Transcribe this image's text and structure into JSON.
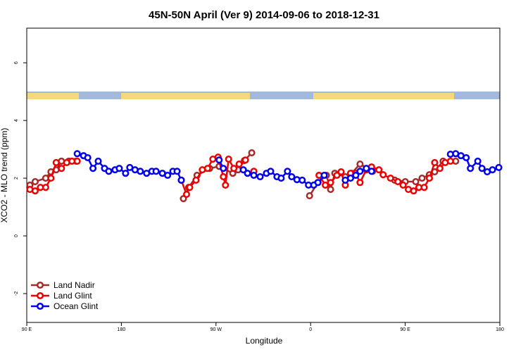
{
  "chart_data": {
    "type": "line",
    "title": "45N-50N April (Ver 9)   2014-09-06 to 2018-12-31",
    "xlabel": "Longitude",
    "ylabel": "XCO2 - MLO trend (ppm)",
    "xlim": [
      90,
      540
    ],
    "ylim": [
      -3,
      7.2
    ],
    "xticks": [
      {
        "value": 90,
        "label": "90 E"
      },
      180,
      {
        "value": 270,
        "label": "90 W"
      },
      {
        "value": 360,
        "label": "0"
      },
      {
        "value": 450,
        "label": "90 E"
      },
      {
        "value": 540,
        "label": "180"
      }
    ],
    "yticks": [
      -2,
      0,
      2,
      4,
      6
    ],
    "legend": "lower left",
    "series": [
      {
        "name": "Land Nadir",
        "color": "#a52a2a",
        "x": [
          93,
          98,
          108,
          113,
          118,
          123,
          130,
          137,
          null,
          239,
          244,
          252,
          264,
          273,
          286,
          291,
          297,
          304,
          null,
          359,
          367,
          375,
          379,
          383,
          393,
          399,
          407,
          419,
          null,
          440,
          450,
          460,
          466,
          473,
          478,
          486,
          498
        ],
        "values": [
          1.76,
          1.88,
          2.0,
          2.22,
          2.29,
          2.59,
          2.59,
          2.59,
          null,
          1.29,
          1.68,
          2.1,
          2.34,
          2.41,
          2.17,
          2.29,
          2.61,
          2.88,
          null,
          1.39,
          1.85,
          2.1,
          1.61,
          2.17,
          2.05,
          2.17,
          2.49,
          2.24,
          null,
          1.93,
          1.88,
          1.88,
          2.0,
          2.12,
          2.22,
          2.59,
          2.59
        ]
      },
      {
        "name": "Land Glint",
        "color": "#ee0000",
        "x": [
          93,
          98,
          103,
          108,
          113,
          118,
          123,
          128,
          133,
          138,
          null,
          237,
          242,
          245,
          251,
          257,
          262,
          267,
          272,
          277,
          279,
          282,
          287,
          292,
          298,
          null,
          306,
          null,
          368,
          374,
          379,
          385,
          389,
          393,
          398,
          403,
          407,
          413,
          418,
          425,
          429,
          436,
          443,
          448,
          453,
          458,
          463,
          468,
          473,
          478,
          483,
          488,
          493
        ],
        "values": [
          1.61,
          1.56,
          1.68,
          1.68,
          2.0,
          2.54,
          2.34,
          2.54,
          2.59,
          2.59,
          null,
          1.93,
          1.44,
          1.68,
          1.93,
          2.29,
          2.34,
          2.66,
          2.73,
          2.05,
          1.76,
          2.66,
          2.34,
          2.49,
          2.63,
          null,
          2.24,
          null,
          2.1,
          1.76,
          1.85,
          2.1,
          2.22,
          1.76,
          2.17,
          2.17,
          1.85,
          2.29,
          2.39,
          2.29,
          2.12,
          2.0,
          1.88,
          1.76,
          1.61,
          1.56,
          1.68,
          1.68,
          2.0,
          2.54,
          2.34,
          2.54,
          2.59
        ]
      },
      {
        "name": "Ocean Glint",
        "color": "#0000ee",
        "x": [
          138,
          144,
          148,
          153,
          158,
          164,
          168,
          174,
          178,
          184,
          188,
          193,
          198,
          204,
          209,
          213,
          219,
          224,
          229,
          233,
          237,
          null,
          273,
          277,
          null,
          296,
          300,
          306,
          312,
          318,
          322,
          328,
          332,
          338,
          342,
          347,
          352,
          358,
          363,
          367,
          373,
          null,
          393,
          398,
          403,
          407,
          413,
          418,
          null,
          493,
          498,
          503,
          508,
          512,
          519,
          523,
          528,
          533,
          539
        ],
        "values": [
          2.85,
          2.78,
          2.71,
          2.34,
          2.59,
          2.34,
          2.24,
          2.29,
          2.34,
          2.17,
          2.37,
          2.29,
          2.24,
          2.17,
          2.24,
          2.24,
          2.17,
          2.1,
          2.24,
          2.24,
          1.93,
          null,
          2.63,
          2.34,
          null,
          2.29,
          2.17,
          2.1,
          2.05,
          2.17,
          2.24,
          2.05,
          2.0,
          2.24,
          2.05,
          1.95,
          1.93,
          1.76,
          1.76,
          1.85,
          2.1,
          null,
          1.93,
          2.0,
          2.1,
          2.24,
          2.34,
          2.24,
          null,
          2.83,
          2.85,
          2.78,
          2.71,
          2.34,
          2.59,
          2.34,
          2.22,
          2.29,
          2.37
        ]
      }
    ]
  }
}
